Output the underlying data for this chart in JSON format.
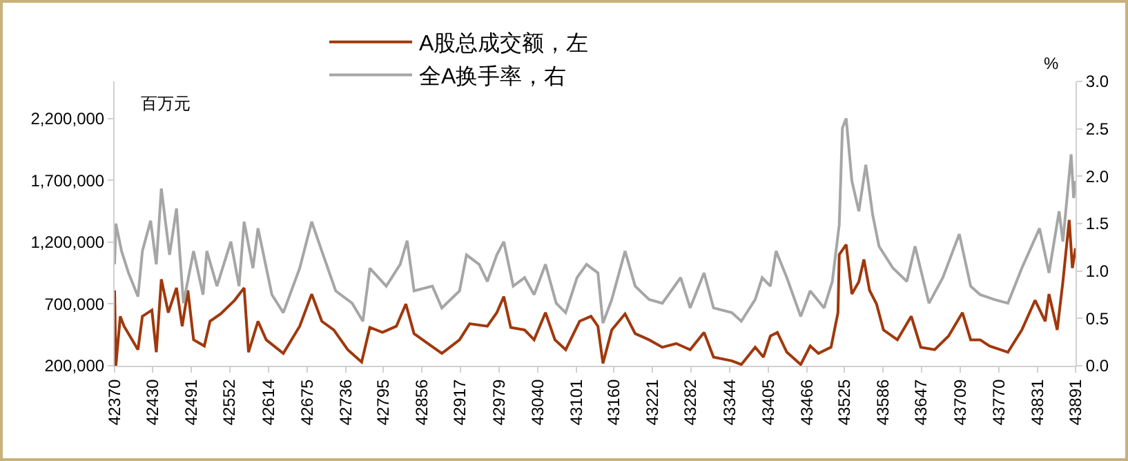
{
  "chart_data": {
    "type": "line",
    "annotations": [
      "百万元",
      "%"
    ],
    "xlim": [
      42370,
      43891
    ],
    "xticks": [
      42370,
      42430,
      42491,
      42552,
      42614,
      42675,
      42736,
      42795,
      42856,
      42917,
      42979,
      43040,
      43101,
      43160,
      43221,
      43282,
      43344,
      43405,
      43466,
      43525,
      43586,
      43647,
      43709,
      43770,
      43831,
      43891
    ],
    "ylim": [
      200000,
      2500000
    ],
    "yticks": [
      {
        "value": 200000,
        "label": "200,000"
      },
      {
        "value": 700000,
        "label": "700,000"
      },
      {
        "value": 1200000,
        "label": "1,200,000"
      },
      {
        "value": 1700000,
        "label": "1,700,000"
      },
      {
        "value": 2200000,
        "label": "2,200,000"
      }
    ],
    "y2lim": [
      0,
      3
    ],
    "y2ticks": [
      {
        "value": 0,
        "label": "0.0"
      },
      {
        "value": 0.5,
        "label": "0.5"
      },
      {
        "value": 1,
        "label": "1.0"
      },
      {
        "value": 1.5,
        "label": "1.5"
      },
      {
        "value": 2,
        "label": "2.0"
      },
      {
        "value": 2.5,
        "label": "2.5"
      },
      {
        "value": 3,
        "label": "3.0"
      }
    ],
    "grid": false,
    "legend": "top",
    "series": [
      {
        "name": "A股总成交额，左",
        "color": "#a0380c",
        "x": [
          42370,
          42372,
          42379,
          42385,
          42407,
          42414,
          42429,
          42436,
          42444,
          42455,
          42468,
          42477,
          42486,
          42495,
          42512,
          42521,
          42538,
          42560,
          42575,
          42582,
          42597,
          42610,
          42637,
          42663,
          42682,
          42698,
          42717,
          42739,
          42761,
          42774,
          42794,
          42816,
          42831,
          42844,
          42866,
          42888,
          42916,
          42932,
          42960,
          42975,
          42986,
          42997,
          43019,
          43034,
          43052,
          43067,
          43084,
          43106,
          43124,
          43135,
          43143,
          43157,
          43178,
          43194,
          43216,
          43237,
          43259,
          43281,
          43303,
          43318,
          43347,
          43362,
          43384,
          43397,
          43408,
          43419,
          43434,
          43456,
          43471,
          43484,
          43504,
          43515,
          43517,
          43528,
          43537,
          43548,
          43556,
          43565,
          43576,
          43587,
          43609,
          43631,
          43646,
          43668,
          43690,
          43712,
          43725,
          43740,
          43755,
          43784,
          43806,
          43827,
          43843,
          43849,
          43862,
          43871,
          43881,
          43886,
          43891
        ],
        "values": [
          810000,
          200000,
          600000,
          520000,
          330000,
          600000,
          650000,
          310000,
          900000,
          630000,
          830000,
          520000,
          810000,
          410000,
          360000,
          560000,
          620000,
          730000,
          830000,
          310000,
          560000,
          410000,
          300000,
          520000,
          780000,
          560000,
          490000,
          330000,
          230000,
          510000,
          470000,
          520000,
          700000,
          460000,
          380000,
          300000,
          410000,
          540000,
          520000,
          630000,
          760000,
          510000,
          490000,
          410000,
          630000,
          410000,
          330000,
          560000,
          600000,
          520000,
          220000,
          490000,
          620000,
          460000,
          410000,
          350000,
          380000,
          330000,
          470000,
          270000,
          240000,
          210000,
          350000,
          270000,
          440000,
          470000,
          310000,
          210000,
          360000,
          300000,
          350000,
          630000,
          1100000,
          1180000,
          780000,
          880000,
          1060000,
          810000,
          700000,
          490000,
          410000,
          600000,
          350000,
          330000,
          440000,
          630000,
          410000,
          410000,
          360000,
          310000,
          490000,
          730000,
          560000,
          780000,
          490000,
          880000,
          1380000,
          990000,
          1150000
        ]
      },
      {
        "name": "全A换手率，右",
        "color": "#a6a6a6",
        "axis": "y2",
        "x": [
          42370,
          42372,
          42381,
          42392,
          42407,
          42414,
          42427,
          42436,
          42444,
          42457,
          42468,
          42479,
          42495,
          42510,
          42516,
          42532,
          42554,
          42567,
          42575,
          42589,
          42597,
          42619,
          42637,
          42663,
          42682,
          42698,
          42720,
          42746,
          42763,
          42774,
          42800,
          42822,
          42833,
          42844,
          42873,
          42888,
          42916,
          42927,
          42947,
          42960,
          42975,
          42986,
          43001,
          43019,
          43034,
          43052,
          43069,
          43084,
          43102,
          43117,
          43135,
          43143,
          43157,
          43178,
          43194,
          43216,
          43237,
          43266,
          43281,
          43303,
          43318,
          43347,
          43362,
          43384,
          43395,
          43408,
          43417,
          43434,
          43456,
          43471,
          43493,
          43506,
          43517,
          43522,
          43528,
          43537,
          43548,
          43559,
          43570,
          43580,
          43602,
          43624,
          43637,
          43659,
          43681,
          43707,
          43725,
          43740,
          43762,
          43784,
          43806,
          43834,
          43849,
          43865,
          43871,
          43884,
          43888,
          43891
        ],
        "values": [
          1.07,
          1.5,
          1.21,
          0.98,
          0.73,
          1.21,
          1.53,
          1.07,
          1.87,
          1.17,
          1.66,
          0.66,
          1.21,
          0.75,
          1.21,
          0.84,
          1.31,
          0.84,
          1.52,
          1.03,
          1.45,
          0.75,
          0.56,
          1.03,
          1.52,
          1.21,
          0.79,
          0.66,
          0.47,
          1.03,
          0.84,
          1.07,
          1.32,
          0.79,
          0.84,
          0.61,
          0.79,
          1.17,
          1.07,
          0.89,
          1.17,
          1.31,
          0.84,
          0.93,
          0.75,
          1.07,
          0.66,
          0.56,
          0.93,
          1.07,
          0.98,
          0.45,
          0.7,
          1.21,
          0.84,
          0.7,
          0.66,
          0.93,
          0.61,
          0.98,
          0.61,
          0.56,
          0.47,
          0.7,
          0.93,
          0.84,
          1.21,
          0.93,
          0.52,
          0.79,
          0.61,
          0.89,
          1.49,
          2.51,
          2.61,
          1.95,
          1.63,
          2.12,
          1.59,
          1.26,
          1.03,
          0.89,
          1.26,
          0.66,
          0.93,
          1.39,
          0.84,
          0.75,
          0.7,
          0.66,
          1.03,
          1.45,
          0.98,
          1.63,
          1.31,
          2.23,
          1.77,
          1.95
        ]
      }
    ]
  }
}
